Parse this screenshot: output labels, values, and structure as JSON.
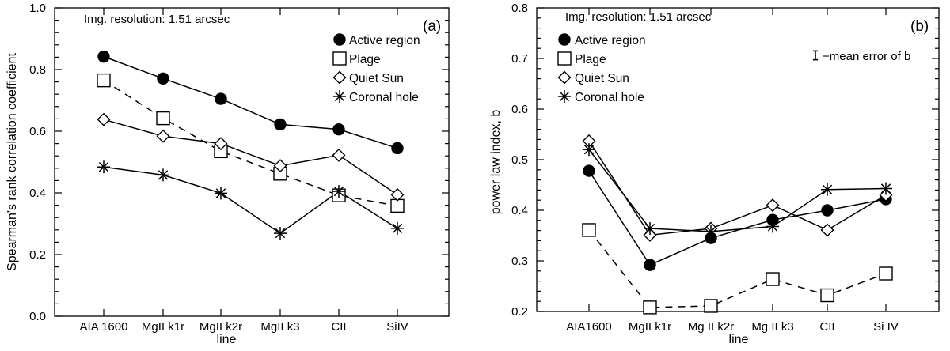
{
  "chart_data": [
    {
      "type": "line",
      "panel_label": "(a)",
      "annotation": "Img. resolution: 1.51 arcsec",
      "xlabel": "line",
      "ylabel": "Spearman's rank correlation coefficient",
      "ylim": [
        0.0,
        1.0
      ],
      "yticks": [
        "0.0",
        "0.2",
        "0.4",
        "0.6",
        "0.8",
        "1.0"
      ],
      "categories": [
        "AIA 1600",
        "MgII k1r",
        "MgII k2r",
        "MgII k3",
        "CII",
        "SiIV"
      ],
      "legend_position": "top-right",
      "series": [
        {
          "name": "Active region",
          "marker": "filled-circle",
          "line": "solid",
          "values": [
            0.842,
            0.771,
            0.705,
            0.622,
            0.606,
            0.545
          ]
        },
        {
          "name": "Plage",
          "marker": "open-square",
          "line": "dashed",
          "values": [
            0.765,
            0.642,
            0.535,
            0.462,
            0.392,
            0.358
          ]
        },
        {
          "name": "Quiet Sun",
          "marker": "open-diamond",
          "line": "solid",
          "values": [
            0.638,
            0.584,
            0.56,
            0.488,
            0.522,
            0.394
          ]
        },
        {
          "name": "Coronal hole",
          "marker": "asterisk",
          "line": "solid",
          "values": [
            0.484,
            0.458,
            0.399,
            0.269,
            0.405,
            0.285
          ]
        }
      ]
    },
    {
      "type": "line",
      "panel_label": "(b)",
      "annotation": "Img. resolution: 1.51 arcsec",
      "error_note": "−mean error of b",
      "error_value": 0.004,
      "xlabel": "line",
      "ylabel": "power law index, b",
      "ylim": [
        0.2,
        0.8
      ],
      "yticks": [
        "0.2",
        "0.3",
        "0.4",
        "0.5",
        "0.6",
        "0.7",
        "0.8"
      ],
      "categories": [
        "AIA1600",
        "MgII k1r",
        "Mg II k2r",
        "Mg II k3",
        "CII",
        "Si IV"
      ],
      "legend_position": "top-left",
      "series": [
        {
          "name": "Active region",
          "marker": "filled-circle",
          "line": "solid",
          "values": [
            0.478,
            0.292,
            0.345,
            0.381,
            0.4,
            0.422
          ]
        },
        {
          "name": "Plage",
          "marker": "open-square",
          "line": "dashed",
          "values": [
            0.361,
            0.208,
            0.211,
            0.264,
            0.232,
            0.275
          ]
        },
        {
          "name": "Quiet Sun",
          "marker": "open-diamond",
          "line": "solid",
          "values": [
            0.537,
            0.351,
            0.364,
            0.41,
            0.361,
            0.43
          ]
        },
        {
          "name": "Coronal hole",
          "marker": "asterisk",
          "line": "solid",
          "values": [
            0.52,
            0.364,
            0.358,
            0.368,
            0.441,
            0.443
          ]
        }
      ]
    }
  ]
}
